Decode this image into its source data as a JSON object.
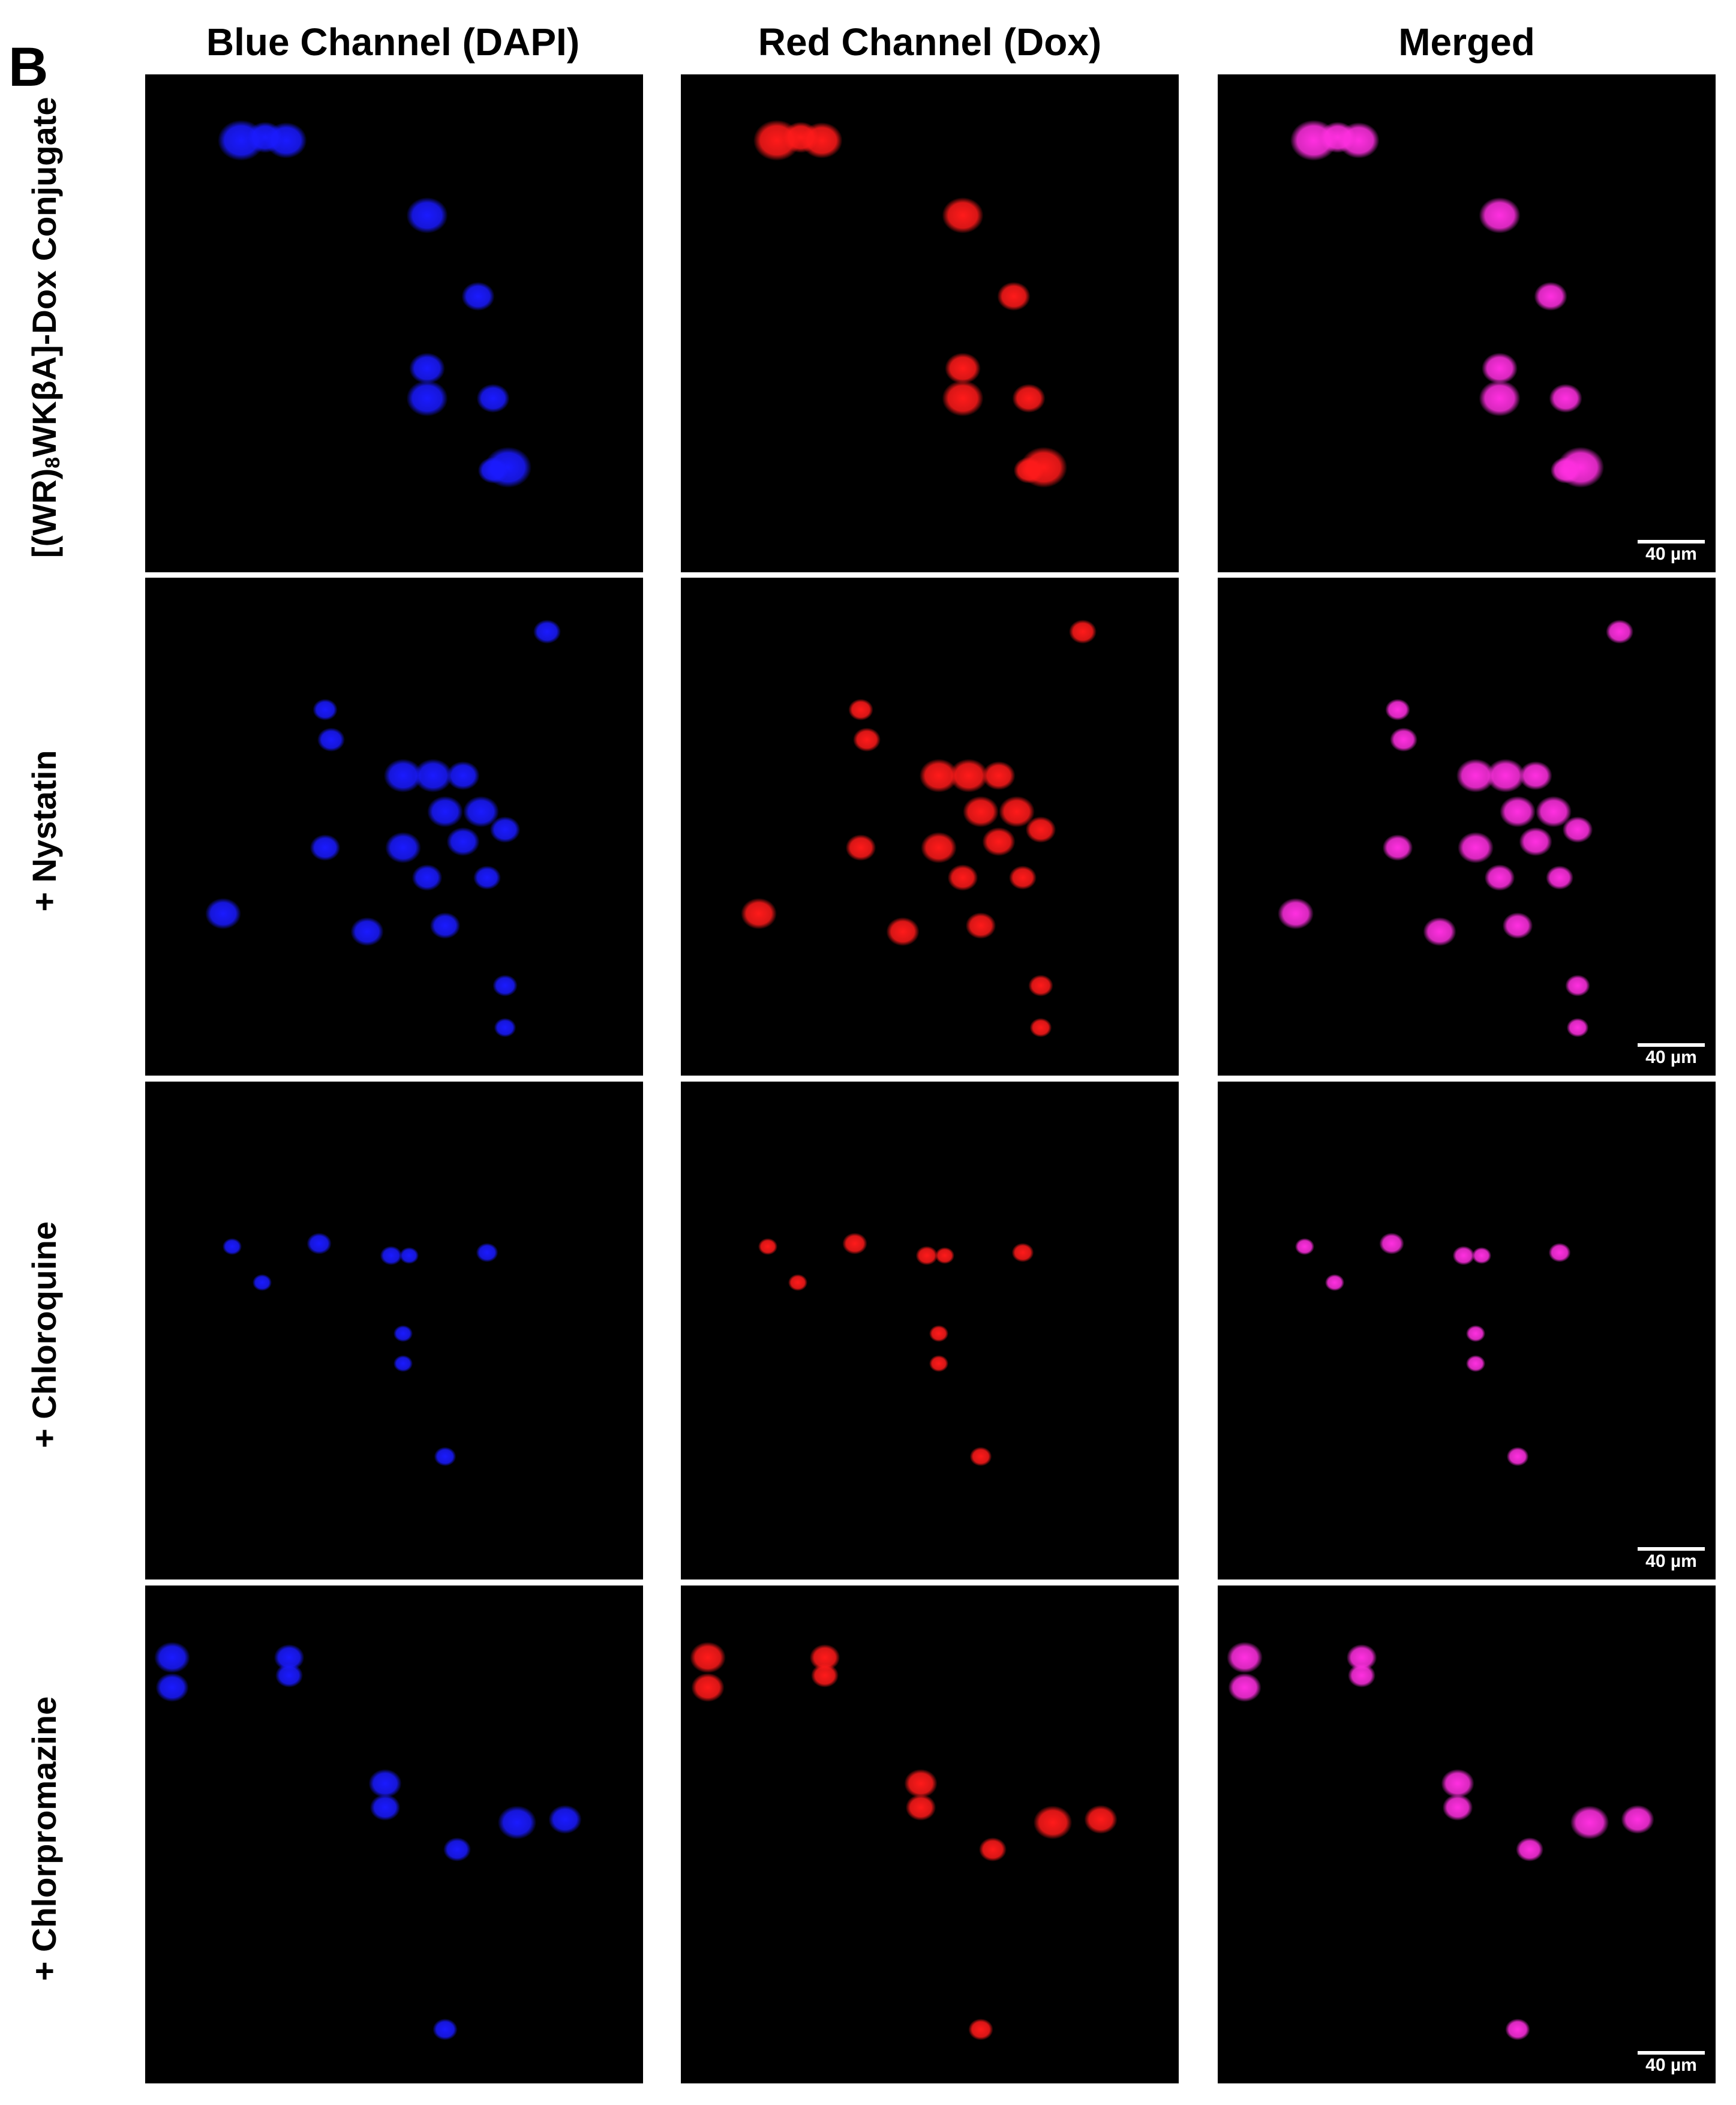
{
  "figure": {
    "panel_letter": "B",
    "columns": [
      "Blue Channel (DAPI)",
      "Red Channel (Dox)",
      "Merged"
    ],
    "rows": [
      {
        "label_main": "[(WR)",
        "label_sub": "8",
        "label_tail": "WKβA]-Dox Conjugate"
      },
      {
        "label_main": "+ Nystatin",
        "label_sub": "",
        "label_tail": ""
      },
      {
        "label_main": "+ Chloroquine",
        "label_sub": "",
        "label_tail": ""
      },
      {
        "label_main": "+ Chlorpromazine",
        "label_sub": "",
        "label_tail": ""
      }
    ],
    "scale_bar_label": "40 µm",
    "colors": {
      "background": "#000000",
      "dapi": "#1a1aff",
      "dox": "#ff1a1a",
      "merged": "#ff2fe0",
      "scale_bar": "#ffffff"
    }
  }
}
